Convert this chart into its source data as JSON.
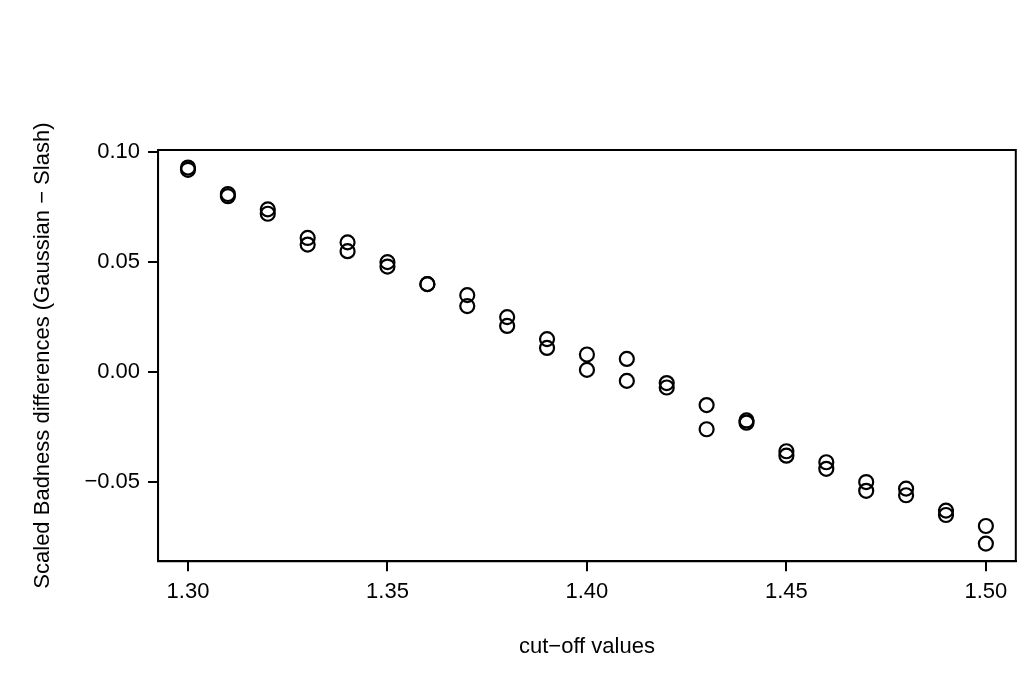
{
  "chart_data": {
    "type": "scatter",
    "xlabel": "cut−off values",
    "ylabel": "Scaled Badness differences (Gaussian − Slash)",
    "x": [
      1.3,
      1.3,
      1.31,
      1.31,
      1.32,
      1.32,
      1.33,
      1.33,
      1.34,
      1.34,
      1.35,
      1.35,
      1.36,
      1.36,
      1.37,
      1.37,
      1.38,
      1.38,
      1.39,
      1.39,
      1.4,
      1.4,
      1.41,
      1.41,
      1.42,
      1.42,
      1.43,
      1.43,
      1.44,
      1.44,
      1.45,
      1.45,
      1.46,
      1.46,
      1.47,
      1.47,
      1.48,
      1.48,
      1.49,
      1.49,
      1.5,
      1.5
    ],
    "values": [
      0.093,
      0.092,
      0.081,
      0.08,
      0.074,
      0.072,
      0.061,
      0.058,
      0.059,
      0.055,
      0.05,
      0.048,
      0.04,
      0.04,
      0.035,
      0.03,
      0.025,
      0.021,
      0.015,
      0.011,
      0.008,
      0.001,
      0.006,
      -0.004,
      -0.005,
      -0.007,
      -0.015,
      -0.026,
      -0.022,
      -0.023,
      -0.036,
      -0.038,
      -0.041,
      -0.044,
      -0.05,
      -0.054,
      -0.053,
      -0.056,
      -0.063,
      -0.065,
      -0.07,
      -0.078
    ],
    "color": "#000000",
    "marker": "circle",
    "grid": false,
    "xlim": [
      1.2925,
      1.5075
    ],
    "xticks": [
      {
        "value": 1.3,
        "label": "1.30"
      },
      1.35,
      {
        "value": 1.4,
        "label": "1.40"
      },
      1.45,
      {
        "value": 1.5,
        "label": "1.50"
      }
    ],
    "ylim": [
      -0.086,
      0.101
    ],
    "yticks": [
      {
        "value": -0.05,
        "label": "−0.05"
      },
      {
        "value": 0,
        "label": "0.00"
      },
      0.05,
      {
        "value": 0.1,
        "label": "0.10"
      }
    ]
  }
}
